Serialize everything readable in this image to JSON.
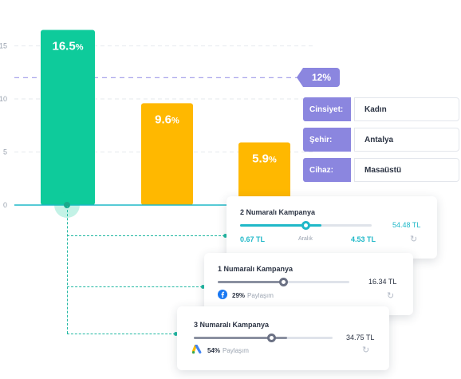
{
  "chart_data": {
    "type": "bar",
    "categories": [
      "",
      "",
      ""
    ],
    "values": [
      16.5,
      9.6,
      5.9
    ],
    "bar_labels": [
      {
        "num": "16.5",
        "unit": "%"
      },
      {
        "num": "9.6",
        "unit": "%"
      },
      {
        "num": "5.9",
        "unit": "%"
      }
    ],
    "bar_colors": [
      "#0ecb9b",
      "#ffb800",
      "#ffb800"
    ],
    "yticks": [
      0,
      5,
      10,
      15
    ],
    "ylim": [
      0,
      20
    ],
    "target_line": 12,
    "target_label": "12%",
    "title": "",
    "xlabel": "",
    "ylabel": ""
  },
  "filters": [
    {
      "label": "Cinsiyet:",
      "value": "Kadın"
    },
    {
      "label": "Şehir:",
      "value": "Antalya"
    },
    {
      "label": "Cihaz:",
      "value": "Masaüstü"
    }
  ],
  "cards": {
    "campaign2": {
      "title": "2 Numaralı Kampanya",
      "amount": "54.48 TL",
      "range_min": "0.67 TL",
      "range_mid": "Aralık",
      "range_max": "4.53 TL",
      "slider": 0.62,
      "accent": "#1fb8c8"
    },
    "campaign1": {
      "title": "1 Numaralı Kampanya",
      "amount": "16.34 TL",
      "share_pct": "29%",
      "share_label": "Paylaşım",
      "icon": "facebook-icon",
      "slider": 0.52,
      "accent": "#6b7184"
    },
    "campaign3": {
      "title": "3 Numaralı Kampanya",
      "amount": "34.75 TL",
      "share_pct": "54%",
      "share_label": "Paylaşım",
      "icon": "google-ads-icon",
      "slider": 0.52,
      "accent": "#6b7184"
    }
  }
}
